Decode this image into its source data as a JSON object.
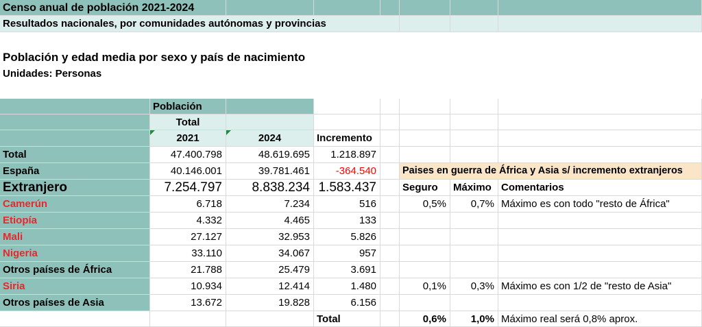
{
  "header": {
    "title": "Censo anual de población 2021-2024",
    "subtitle": "Resultados nacionales, por comunidades autónomas y provincias",
    "table_title": "Población y edad media por sexo y país de nacimiento",
    "units": "Unidades: Personas"
  },
  "col_headers": {
    "poblacion": "Población",
    "total": "Total",
    "y2021": "2021",
    "y2024": "2024",
    "incremento": "Incremento"
  },
  "right_panel": {
    "heading": "Paises en guerra de África y Asia s/ incremento extranjeros",
    "seguro": "Seguro",
    "maximo": "Máximo",
    "comentarios": "Comentarios"
  },
  "rows": [
    {
      "label": "Total",
      "v2021": "47.400.798",
      "v2024": "48.619.695",
      "inc": "1.218.897"
    },
    {
      "label": "España",
      "v2021": "40.146.001",
      "v2024": "39.781.461",
      "inc": "-364.540"
    },
    {
      "label": "Extranjero",
      "v2021": "7.254.797",
      "v2024": "8.838.234",
      "inc": "1.583.437"
    },
    {
      "label": "Camerún",
      "v2021": "6.718",
      "v2024": "7.234",
      "inc": "516",
      "seguro": "0,5%",
      "maximo": "0,7%",
      "comentario": "Máximo es con todo \"resto de África\""
    },
    {
      "label": "Etiopía",
      "v2021": "4.332",
      "v2024": "4.465",
      "inc": "133"
    },
    {
      "label": "Mali",
      "v2021": "27.127",
      "v2024": "32.953",
      "inc": "5.826"
    },
    {
      "label": "Nigeria",
      "v2021": "33.110",
      "v2024": "34.067",
      "inc": "957"
    },
    {
      "label": "Otros países de África",
      "v2021": "21.788",
      "v2024": "25.479",
      "inc": "3.691"
    },
    {
      "label": "Siria",
      "v2021": "10.934",
      "v2024": "12.414",
      "inc": "1.480",
      "seguro": "0,1%",
      "maximo": "0,3%",
      "comentario": "Máximo es con 1/2 de \"resto de Asia\""
    },
    {
      "label": "Otros países de Asia",
      "v2021": "13.672",
      "v2024": "19.828",
      "inc": "6.156"
    }
  ],
  "totals_row": {
    "label": "Total",
    "seguro": "0,6%",
    "maximo": "1,0%",
    "comentario": "Máximo real será 0,8% aprox."
  }
}
